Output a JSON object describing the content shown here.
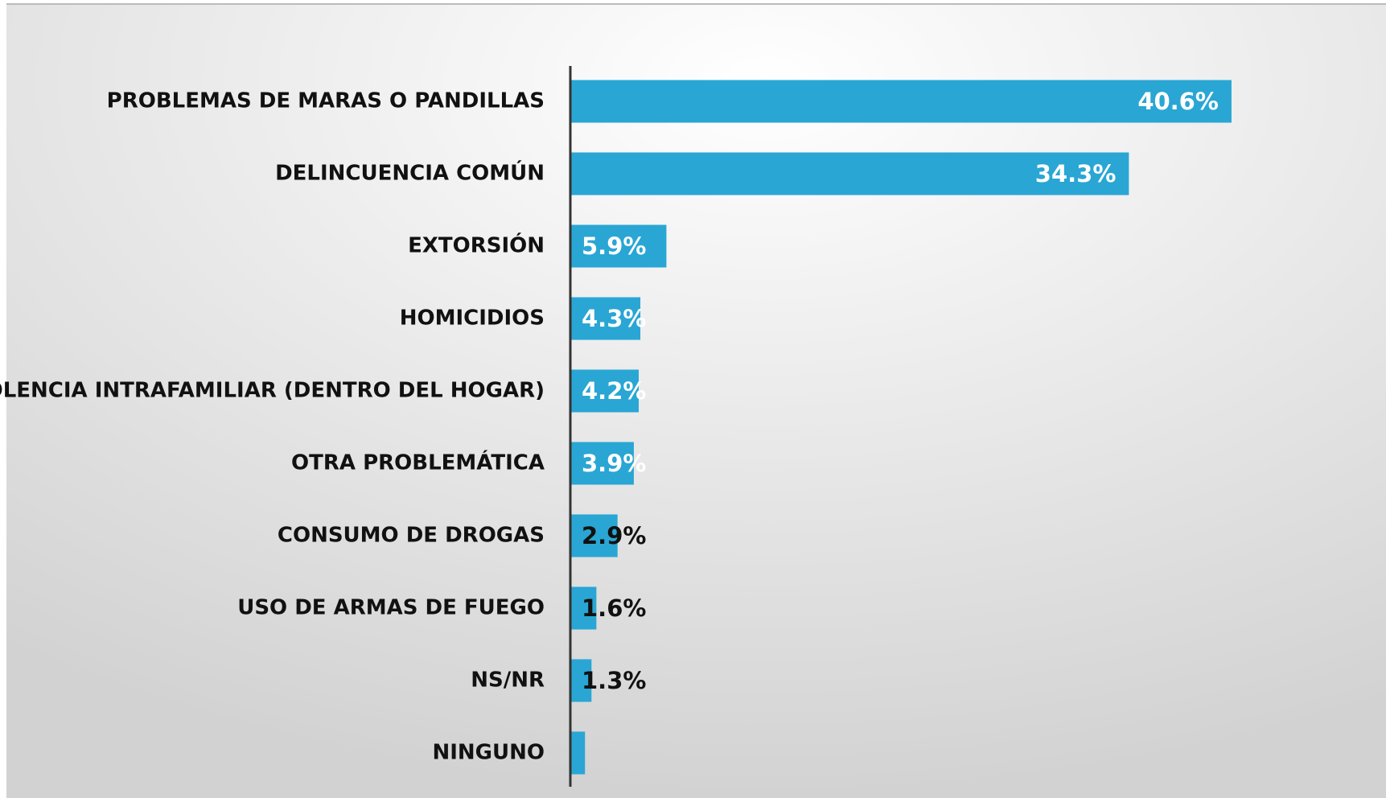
{
  "chart_data": {
    "type": "bar",
    "orientation": "horizontal",
    "categories": [
      "PROBLEMAS DE MARAS O PANDILLAS",
      "DELINCUENCIA COMÚN",
      "EXTORSIÓN",
      "HOMICIDIOS",
      "VIOLENCIA INTRAFAMILIAR (DENTRO DEL HOGAR)",
      "OTRA PROBLEMÁTICA",
      "CONSUMO DE DROGAS",
      "USO DE ARMAS DE FUEGO",
      "NS/NR",
      "NINGUNO"
    ],
    "values": [
      40.6,
      34.3,
      5.9,
      4.3,
      4.2,
      3.9,
      2.9,
      1.6,
      1.3,
      0.9
    ],
    "value_labels": [
      "40.6%",
      "34.3%",
      "5.9%",
      "4.3%",
      "4.2%",
      "3.9%",
      "2.9%",
      "1.6%",
      "1.3%",
      null
    ],
    "color": "#29a6d4",
    "xlim": [
      0,
      45
    ],
    "grid": false
  }
}
